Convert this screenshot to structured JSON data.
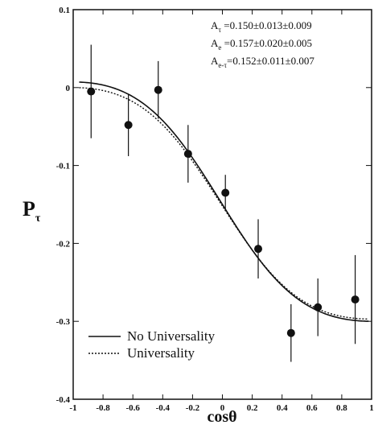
{
  "chart_data": {
    "type": "scatter",
    "xlabel": "cosθ",
    "ylabel_main": "P",
    "ylabel_sub": "τ",
    "xlim": [
      -1,
      1
    ],
    "ylim": [
      -0.4,
      0.1
    ],
    "x_ticks": [
      -1,
      -0.8,
      -0.6,
      -0.4,
      -0.2,
      0,
      0.2,
      0.4,
      0.6,
      0.8,
      1
    ],
    "x_tick_labels": [
      "-1",
      "-0.8",
      "-0.6",
      "-0.4",
      "-0.2",
      "0",
      "0.2",
      "0.4",
      "0.6",
      "0.8",
      "1"
    ],
    "y_ticks": [
      0.1,
      0,
      -0.1,
      -0.2,
      -0.3,
      -0.4
    ],
    "y_tick_labels": [
      "0.1",
      "0",
      "-0.1",
      "-0.2",
      "-0.3",
      "-0.4"
    ],
    "annotations": [
      {
        "main": "A",
        "sub": "τ",
        "text": " =0.150±0.013±0.009"
      },
      {
        "main": "A",
        "sub": "e",
        "text": " =0.157±0.020±0.005"
      },
      {
        "main": "A",
        "sub": "e-τ",
        "text": "=0.152±0.011±0.007"
      }
    ],
    "legend": {
      "position": "bottom-left",
      "entries": [
        {
          "label": "No Universality",
          "style": "solid"
        },
        {
          "label": "Universality",
          "style": "dotted"
        }
      ]
    },
    "series": [
      {
        "kind": "data-points",
        "x": [
          -0.88,
          -0.63,
          -0.43,
          -0.23,
          0.02,
          0.24,
          0.46,
          0.64,
          0.89
        ],
        "y": [
          -0.005,
          -0.048,
          -0.003,
          -0.085,
          -0.135,
          -0.207,
          -0.315,
          -0.282,
          -0.272
        ],
        "y_err": [
          0.06,
          0.04,
          0.037,
          0.037,
          0.023,
          0.038,
          0.037,
          0.037,
          0.057
        ]
      },
      {
        "kind": "curve",
        "label": "No Universality",
        "style": "solid",
        "A_e": 0.157,
        "A_tau": 0.15
      },
      {
        "kind": "curve",
        "label": "Universality",
        "style": "dotted",
        "A_e": 0.152,
        "A_tau": 0.152
      }
    ]
  }
}
